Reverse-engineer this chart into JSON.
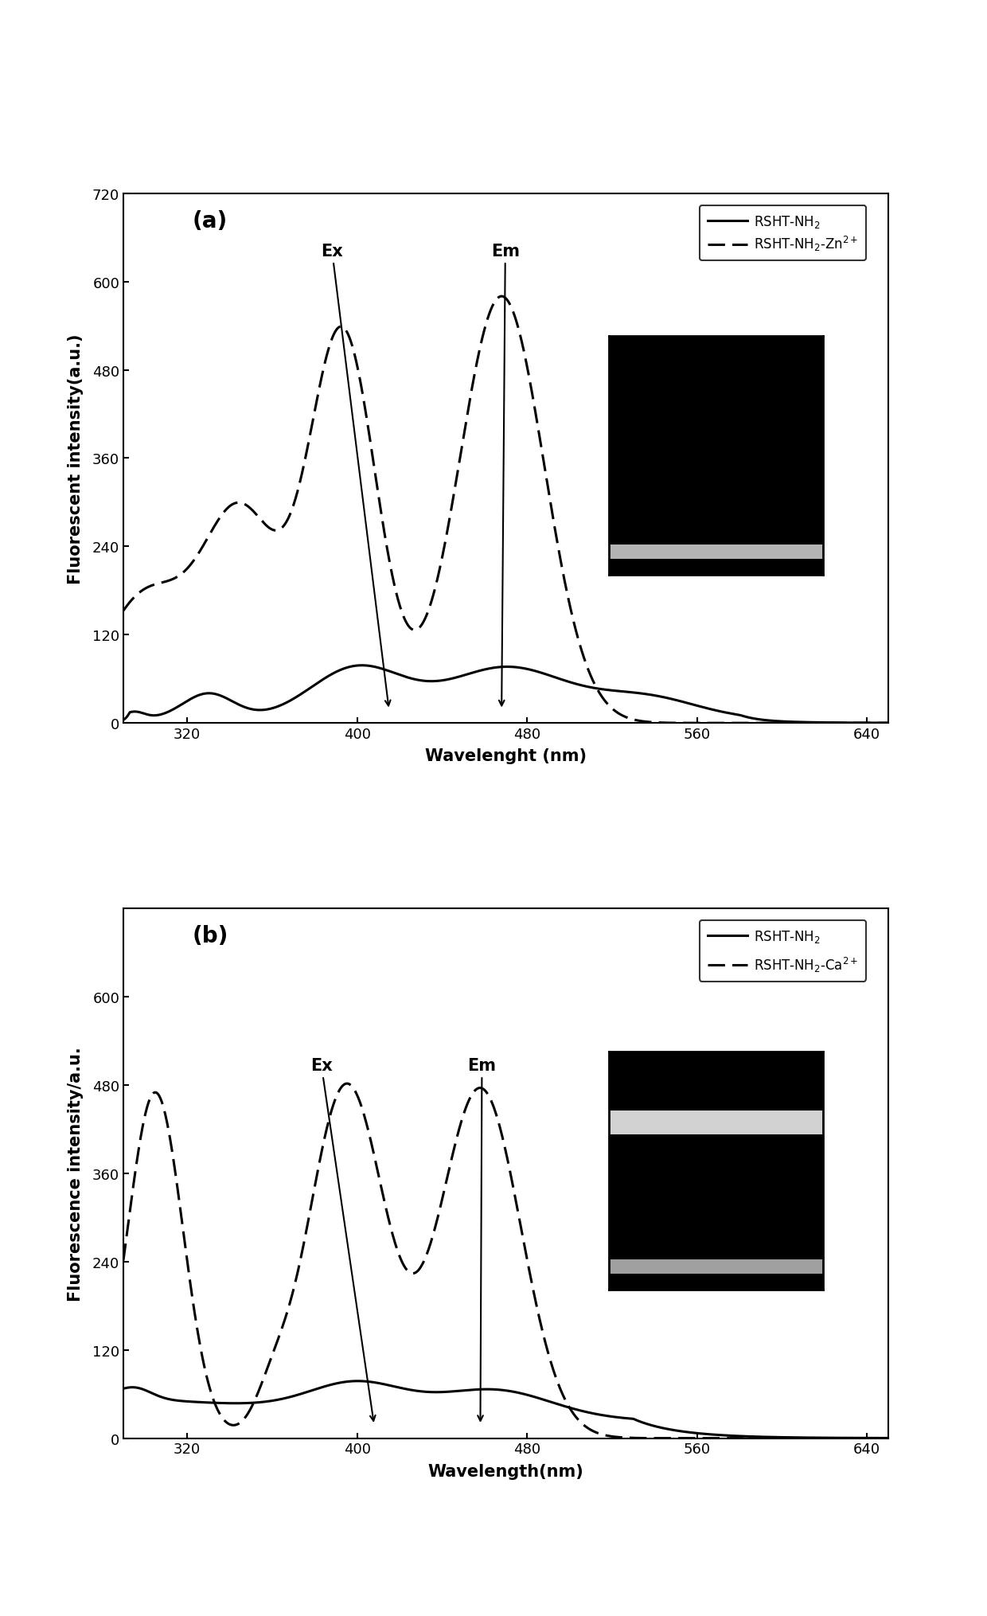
{
  "panel_a": {
    "title": "(a)",
    "ylabel": "Fluorescent intensity(a.u.)",
    "xlabel": "Wavelenght (nm)",
    "xlim": [
      290,
      650
    ],
    "ylim": [
      0,
      720
    ],
    "yticks": [
      0,
      120,
      240,
      360,
      480,
      600,
      720
    ],
    "xticks": [
      320,
      400,
      480,
      560,
      640
    ],
    "legend1": "RSHT-NH$_2$",
    "legend2": "RSHT-NH$_2$-Zn$^{2+}$"
  },
  "panel_b": {
    "title": "(b)",
    "ylabel": "Fluorescence intensity/a.u.",
    "xlabel": "Wavelength(nm)",
    "xlim": [
      290,
      650
    ],
    "ylim": [
      0,
      720
    ],
    "yticks": [
      0,
      120,
      240,
      360,
      480,
      600
    ],
    "xticks": [
      320,
      400,
      480,
      560,
      640
    ],
    "legend1": "RSHT-NH$_2$",
    "legend2": "RSHT-NH$_2$-Ca$^{2+}$"
  }
}
